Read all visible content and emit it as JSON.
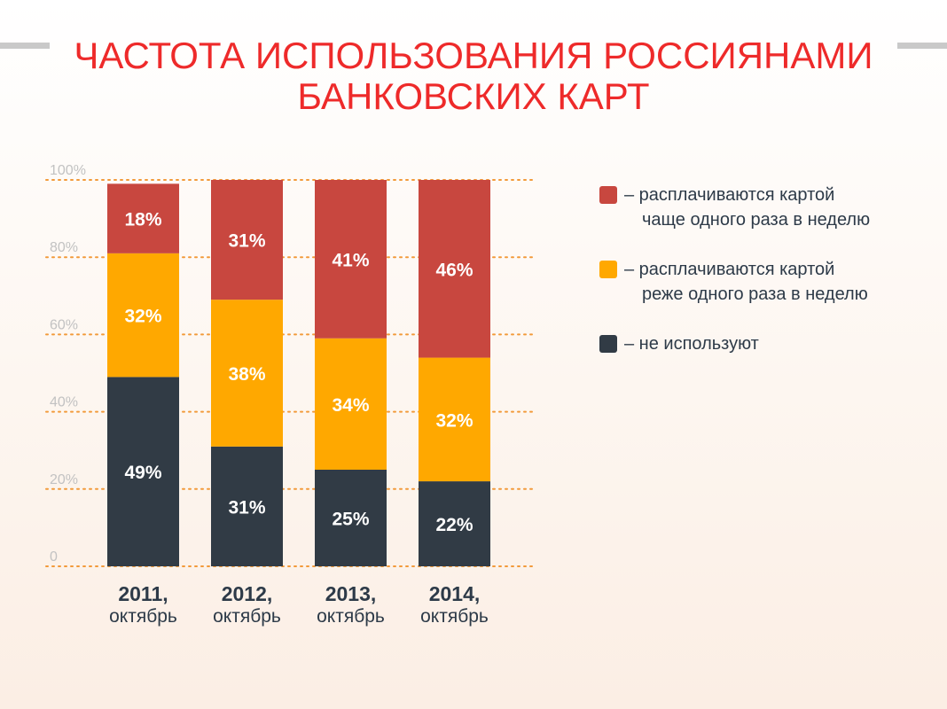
{
  "title": {
    "line1": "ЧАСТОТА ИСПОЛЬЗОВАНИЯ РОССИЯНАМИ",
    "line2": "БАНКОВСКИХ КАРТ"
  },
  "colors": {
    "title": "#ee2a2a",
    "frequent": "#c8473f",
    "rare": "#ffa800",
    "none": "#313b45",
    "grid": "#f29a3a",
    "axis_text": "#c2c2c2",
    "category_text": "#2d3a48"
  },
  "legend": [
    {
      "key": "frequent",
      "line1": "– расплачиваются картой",
      "line2": "чаще одного раза в неделю"
    },
    {
      "key": "rare",
      "line1": "– расплачиваются картой",
      "line2": "реже одного раза в неделю"
    },
    {
      "key": "none",
      "line1": "– не используют",
      "line2": ""
    }
  ],
  "chart_data": {
    "type": "bar",
    "stacked": true,
    "categories": [
      {
        "year": "2011,",
        "month": "октябрь"
      },
      {
        "year": "2012,",
        "month": "октябрь"
      },
      {
        "year": "2013,",
        "month": "октябрь"
      },
      {
        "year": "2014,",
        "month": "октябрь"
      }
    ],
    "series": [
      {
        "key": "none",
        "values": [
          49,
          31,
          25,
          22
        ],
        "labels": [
          "49%",
          "31%",
          "25%",
          "22%"
        ]
      },
      {
        "key": "rare",
        "values": [
          32,
          38,
          34,
          32
        ],
        "labels": [
          "32%",
          "38%",
          "34%",
          "32%"
        ]
      },
      {
        "key": "frequent",
        "values": [
          18,
          31,
          41,
          46
        ],
        "labels": [
          "18%",
          "31%",
          "41%",
          "46%"
        ]
      }
    ],
    "ylim": [
      0,
      100
    ],
    "yticks": [
      0,
      20,
      40,
      60,
      80,
      100
    ],
    "ytick_labels": [
      "0",
      "20%",
      "40%",
      "60%",
      "80%",
      "100%"
    ],
    "grid": true,
    "grid_style": "dotted",
    "legend_position": "right"
  }
}
